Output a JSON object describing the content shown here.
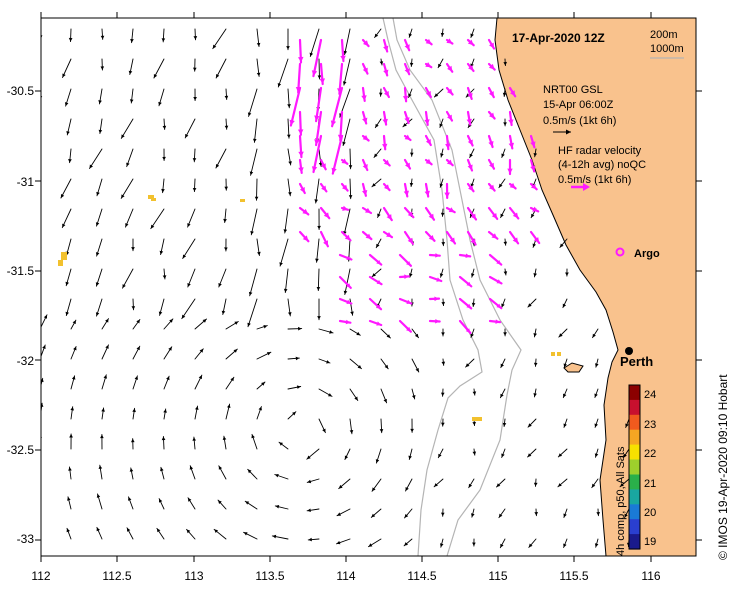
{
  "title": "17-Apr-2020 12Z",
  "contours": {
    "line1": "200m",
    "line2": "1000m"
  },
  "legend": {
    "model_title": "NRT00 GSL",
    "model_time": "15-Apr 06:00Z",
    "model_scale": "0.5m/s (1kt 6h)",
    "hf_title": "HF radar velocity",
    "hf_avg": "(4-12h avg) noQC",
    "hf_scale": "0.5m/s (1kt 6h)"
  },
  "places": {
    "argo": "Argo",
    "perth": "Perth"
  },
  "axes": {
    "lon_ticks": [
      "112",
      "112.5",
      "113",
      "113.5",
      "114",
      "114.5",
      "115",
      "115.5",
      "116"
    ],
    "lat_ticks": [
      "-30.5",
      "-31",
      "-31.5",
      "-32",
      "-32.5",
      "-33"
    ]
  },
  "colorbar": {
    "ticks": [
      "24",
      "23",
      "22",
      "21",
      "20",
      "19"
    ],
    "label": "4h comp, p50, All Sats",
    "colors": [
      "#8b0000",
      "#c8102e",
      "#f05a1e",
      "#f5a623",
      "#f7e000",
      "#9ed02c",
      "#2ab04a",
      "#19a7a0",
      "#1a7ad6",
      "#2a3fd0",
      "#1a1a8c"
    ]
  },
  "credit": "©  IMOS 19-Apr-2020 09:10 Hobart",
  "colors": {
    "land": "#f9c28d",
    "hf": "#ff19ff",
    "arrow": "#000000",
    "contour": "#b4b4b4",
    "sst": "#f2c12e"
  }
}
